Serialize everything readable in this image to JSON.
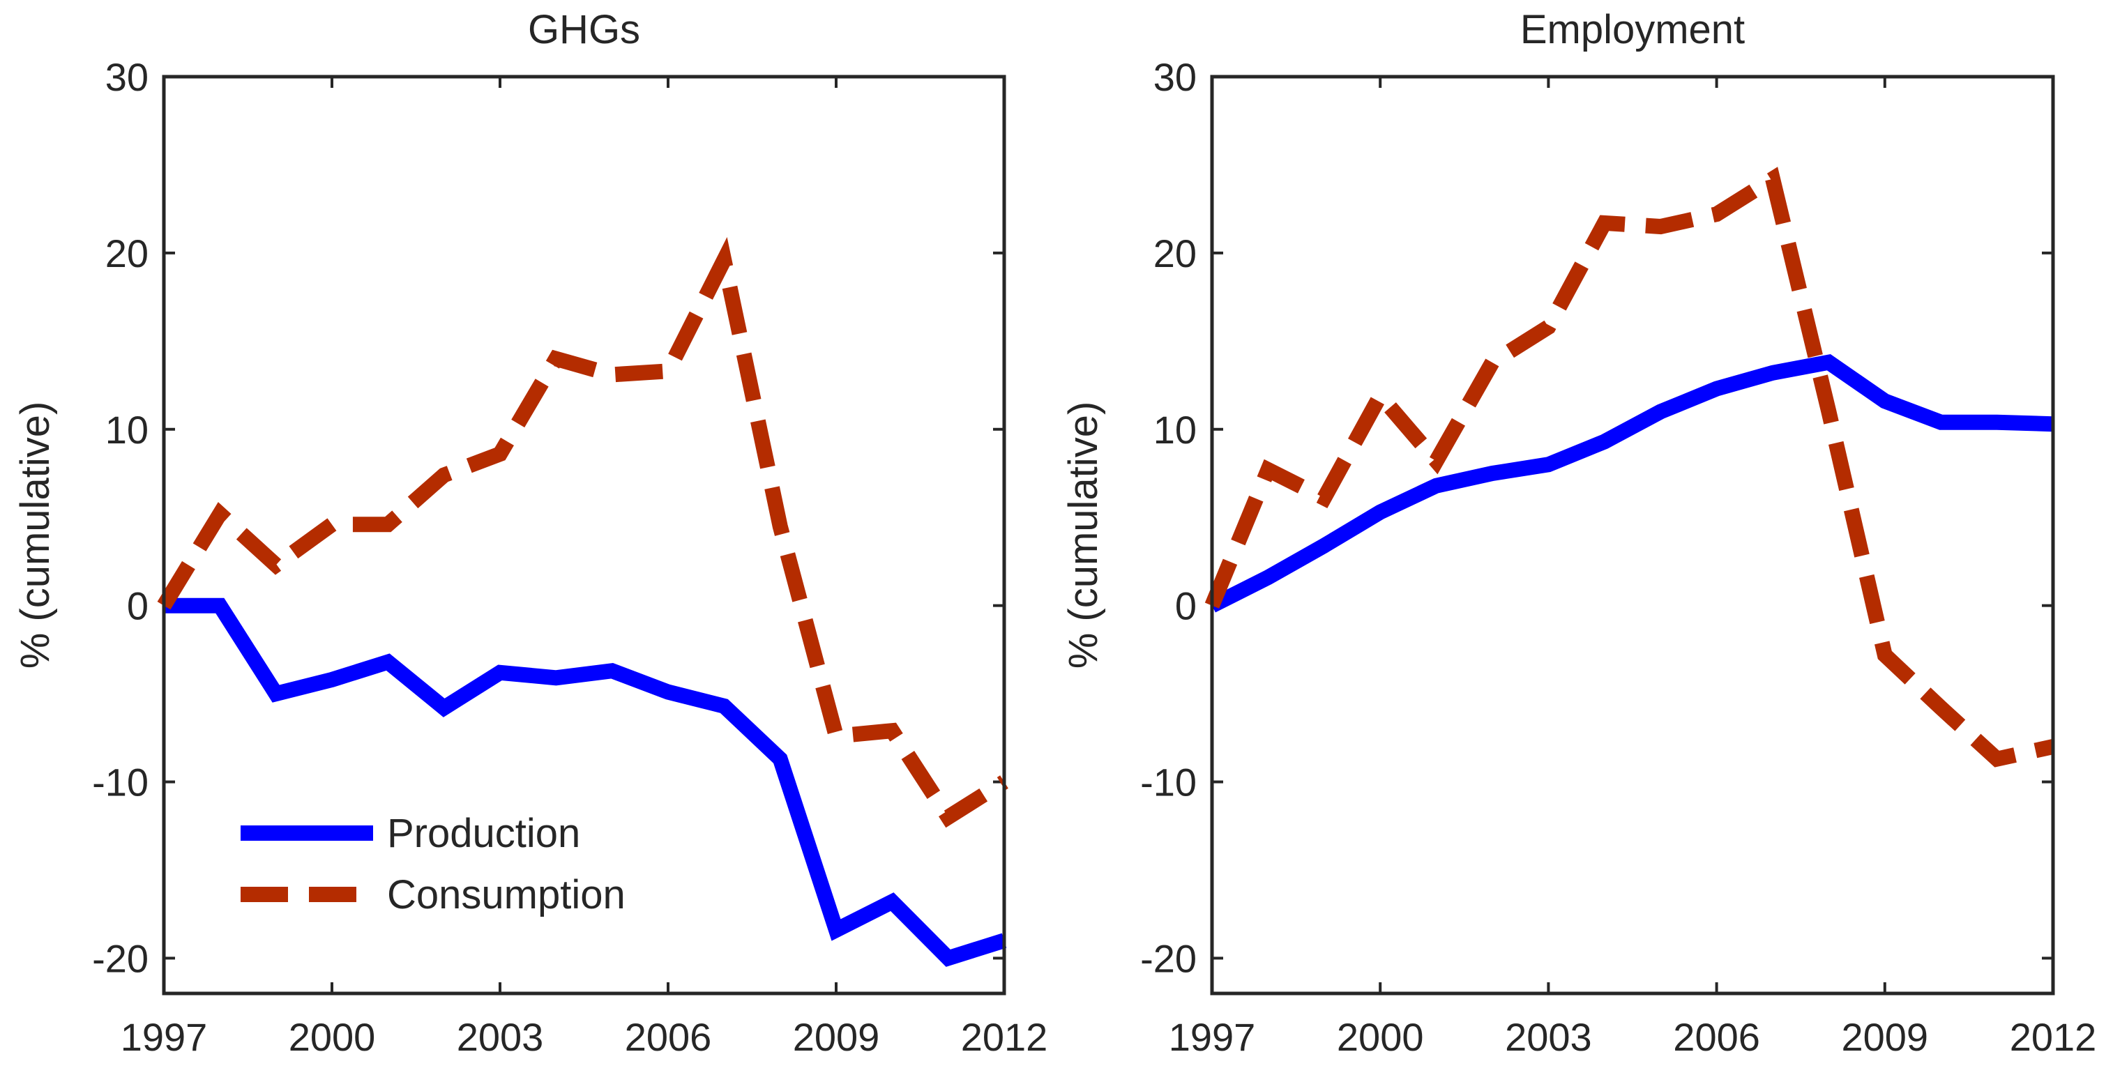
{
  "colors": {
    "production": "#0000ff",
    "consumption": "#b42c00",
    "axis": "#262626"
  },
  "chart_data": [
    {
      "type": "line",
      "title": "GHGs",
      "xlabel": "",
      "ylabel": "% (cumulative)",
      "xlim": [
        1997,
        2012
      ],
      "ylim": [
        -22,
        30
      ],
      "xticks": [
        1997,
        2000,
        2003,
        2006,
        2009,
        2012
      ],
      "xtick_labels": [
        "1997",
        "2000",
        "2003",
        "2006",
        "2009",
        "2012"
      ],
      "yticks": [
        -20,
        -10,
        0,
        10,
        20,
        30
      ],
      "ytick_labels": [
        "-20",
        "-10",
        "0",
        "10",
        "20",
        "30"
      ],
      "legend_position": "bottom-left",
      "x": [
        1997,
        1998,
        1999,
        2000,
        2001,
        2002,
        2003,
        2004,
        2005,
        2006,
        2007,
        2008,
        2009,
        2010,
        2011,
        2012
      ],
      "series": [
        {
          "name": "Production",
          "style": "solid",
          "values": [
            0,
            0,
            -5.0,
            -4.2,
            -3.2,
            -5.8,
            -3.8,
            -4.1,
            -3.7,
            -4.9,
            -5.7,
            -8.7,
            -18.4,
            -16.8,
            -20.0,
            -19.0
          ]
        },
        {
          "name": "Consumption",
          "style": "dashed",
          "values": [
            0,
            5.2,
            2.3,
            4.6,
            4.6,
            7.4,
            8.6,
            14.0,
            13.1,
            13.3,
            19.6,
            4.5,
            -7.4,
            -7.1,
            -12.0,
            -10.0
          ]
        }
      ]
    },
    {
      "type": "line",
      "title": "Employment",
      "xlabel": "",
      "ylabel": "% (cumulative)",
      "xlim": [
        1997,
        2012
      ],
      "ylim": [
        -22,
        30
      ],
      "xticks": [
        1997,
        2000,
        2003,
        2006,
        2009,
        2012
      ],
      "xtick_labels": [
        "1997",
        "2000",
        "2003",
        "2006",
        "2009",
        "2012"
      ],
      "yticks": [
        -20,
        -10,
        0,
        10,
        20,
        30
      ],
      "ytick_labels": [
        "-20",
        "-10",
        "0",
        "10",
        "20",
        "30"
      ],
      "x": [
        1997,
        1998,
        1999,
        2000,
        2001,
        2002,
        2003,
        2004,
        2005,
        2006,
        2007,
        2008,
        2009,
        2010,
        2011,
        2012
      ],
      "series": [
        {
          "name": "Production",
          "style": "solid",
          "values": [
            0,
            1.6,
            3.4,
            5.3,
            6.8,
            7.5,
            8.0,
            9.3,
            11.0,
            12.3,
            13.2,
            13.8,
            11.6,
            10.4,
            10.4,
            10.3
          ]
        },
        {
          "name": "Consumption",
          "style": "dashed",
          "values": [
            0,
            7.7,
            6.1,
            11.9,
            8.2,
            13.8,
            15.8,
            21.7,
            21.5,
            22.2,
            24.2,
            11.0,
            -2.8,
            -5.8,
            -8.7,
            -8.0
          ]
        }
      ]
    }
  ]
}
